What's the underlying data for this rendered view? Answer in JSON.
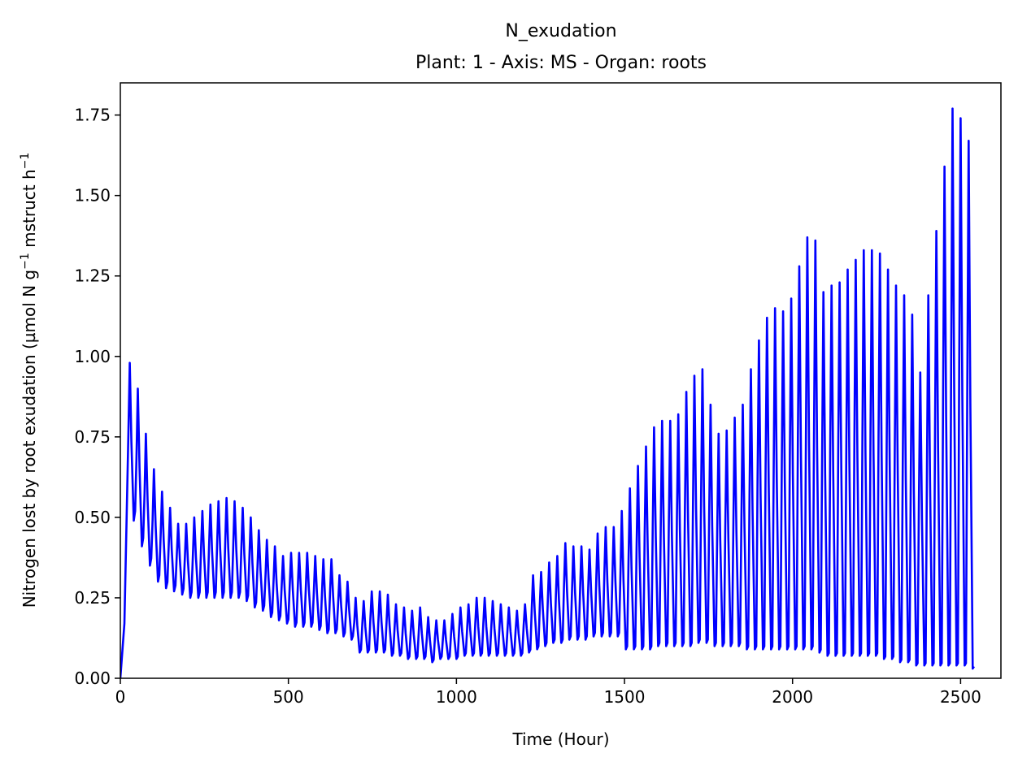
{
  "chart_data": {
    "type": "line",
    "title": "N_exudation",
    "subtitle": "Plant: 1 - Axis: MS - Organ: roots",
    "xlabel": "Time (Hour)",
    "ylabel": "Nitrogen lost by root exudation (µmol N g⁻¹ mstruct h⁻¹",
    "xlim": [
      0,
      2620
    ],
    "ylim": [
      0,
      1.85
    ],
    "xticks": [
      0,
      500,
      1000,
      1500,
      2000,
      2500
    ],
    "xtick_labels": [
      "0",
      "500",
      "1000",
      "1500",
      "2000",
      "2500"
    ],
    "yticks": [
      0,
      0.25,
      0.5,
      0.75,
      1.0,
      1.25,
      1.5,
      1.75
    ],
    "ytick_labels": [
      "0.00",
      "0.25",
      "0.50",
      "0.75",
      "1.00",
      "1.25",
      "1.50",
      "1.75"
    ],
    "grid": false,
    "legend": false,
    "line_color": "#0000ff",
    "series": [
      {
        "x_start": 0,
        "x_step": 24,
        "peaks": [
          0.98,
          0.9,
          0.76,
          0.65,
          0.58,
          0.53,
          0.48,
          0.48,
          0.5,
          0.52,
          0.54,
          0.55,
          0.56,
          0.55,
          0.53,
          0.5,
          0.46,
          0.43,
          0.41,
          0.38,
          0.39,
          0.39,
          0.39,
          0.38,
          0.37,
          0.37,
          0.32,
          0.3,
          0.25,
          0.24,
          0.27,
          0.27,
          0.26,
          0.23,
          0.22,
          0.21,
          0.22,
          0.19,
          0.18,
          0.18,
          0.2,
          0.22,
          0.23,
          0.25,
          0.25,
          0.24,
          0.23,
          0.22,
          0.21,
          0.23,
          0.32,
          0.33,
          0.36,
          0.38,
          0.42,
          0.41,
          0.41,
          0.4,
          0.45,
          0.47,
          0.47,
          0.52,
          0.59,
          0.66,
          0.72,
          0.78,
          0.8,
          0.8,
          0.82,
          0.89,
          0.94,
          0.96,
          0.85,
          0.76,
          0.77,
          0.81,
          0.85,
          0.96,
          1.05,
          1.12,
          1.15,
          1.14,
          1.18,
          1.28,
          1.37,
          1.36,
          1.2,
          1.22,
          1.23,
          1.27,
          1.3,
          1.33,
          1.33,
          1.32,
          1.27,
          1.22,
          1.19,
          1.13,
          0.95,
          1.19,
          1.39,
          1.59,
          1.77,
          1.74,
          1.67
        ],
        "troughs": [
          0.49,
          0.41,
          0.35,
          0.3,
          0.28,
          0.27,
          0.26,
          0.25,
          0.25,
          0.25,
          0.25,
          0.25,
          0.25,
          0.25,
          0.24,
          0.22,
          0.21,
          0.19,
          0.18,
          0.17,
          0.16,
          0.16,
          0.16,
          0.15,
          0.14,
          0.14,
          0.13,
          0.12,
          0.08,
          0.08,
          0.08,
          0.08,
          0.07,
          0.07,
          0.06,
          0.06,
          0.06,
          0.05,
          0.06,
          0.06,
          0.06,
          0.07,
          0.07,
          0.07,
          0.07,
          0.07,
          0.07,
          0.07,
          0.07,
          0.08,
          0.09,
          0.1,
          0.11,
          0.11,
          0.12,
          0.12,
          0.12,
          0.13,
          0.13,
          0.13,
          0.13,
          0.09,
          0.09,
          0.09,
          0.09,
          0.1,
          0.1,
          0.1,
          0.1,
          0.1,
          0.11,
          0.11,
          0.1,
          0.1,
          0.1,
          0.1,
          0.09,
          0.09,
          0.09,
          0.09,
          0.09,
          0.09,
          0.09,
          0.09,
          0.09,
          0.08,
          0.07,
          0.07,
          0.07,
          0.07,
          0.07,
          0.07,
          0.07,
          0.06,
          0.06,
          0.05,
          0.05,
          0.04,
          0.04,
          0.04,
          0.04,
          0.04,
          0.04,
          0.04,
          0.03
        ]
      }
    ]
  }
}
